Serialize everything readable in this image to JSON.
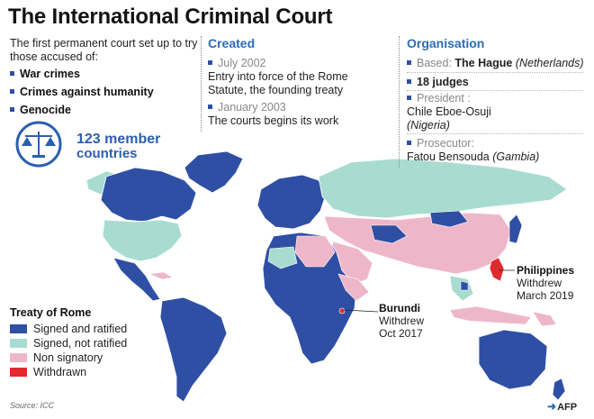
{
  "title": "The International Criminal Court",
  "intro": {
    "text": "The first permanent court set up to try those accused of:",
    "crimes": [
      "War crimes",
      "Crimes against humanity",
      "Genocide"
    ]
  },
  "members": {
    "count": "123 member",
    "label": "countries"
  },
  "created": {
    "heading": "Created",
    "events": [
      {
        "date": "July 2002",
        "text": "Entry into force of the Rome Statute, the founding treaty"
      },
      {
        "date": "January 2003",
        "text": "The courts begins its work"
      }
    ]
  },
  "organisation": {
    "heading": "Organisation",
    "based_label": "Based:",
    "based_city": "The Hague",
    "based_country": "(Netherlands)",
    "judges": "18 judges",
    "president_label": "President :",
    "president_name": "Chile Eboe-Osuji",
    "president_country": "(Nigeria)",
    "prosecutor_label": "Prosecutor:",
    "prosecutor_name": "Fatou Bensouda",
    "prosecutor_country": "(Gambia)"
  },
  "legend": {
    "title": "Treaty of Rome",
    "items": [
      {
        "label": "Signed and ratified",
        "color": "#2f4fa5"
      },
      {
        "label": "Signed, not ratified",
        "color": "#a8dcd0"
      },
      {
        "label": "Non signatory",
        "color": "#eeb7c9"
      },
      {
        "label": "Withdrawn",
        "color": "#e02a2f"
      }
    ]
  },
  "callouts": {
    "burundi": {
      "name": "Burundi",
      "line1": "Withdrew",
      "line2": "Oct 2017"
    },
    "philippines": {
      "name": "Philippines",
      "line1": "Withdrew",
      "line2": "March 2019"
    }
  },
  "source": "Source: ICC",
  "credit": "AFP"
}
